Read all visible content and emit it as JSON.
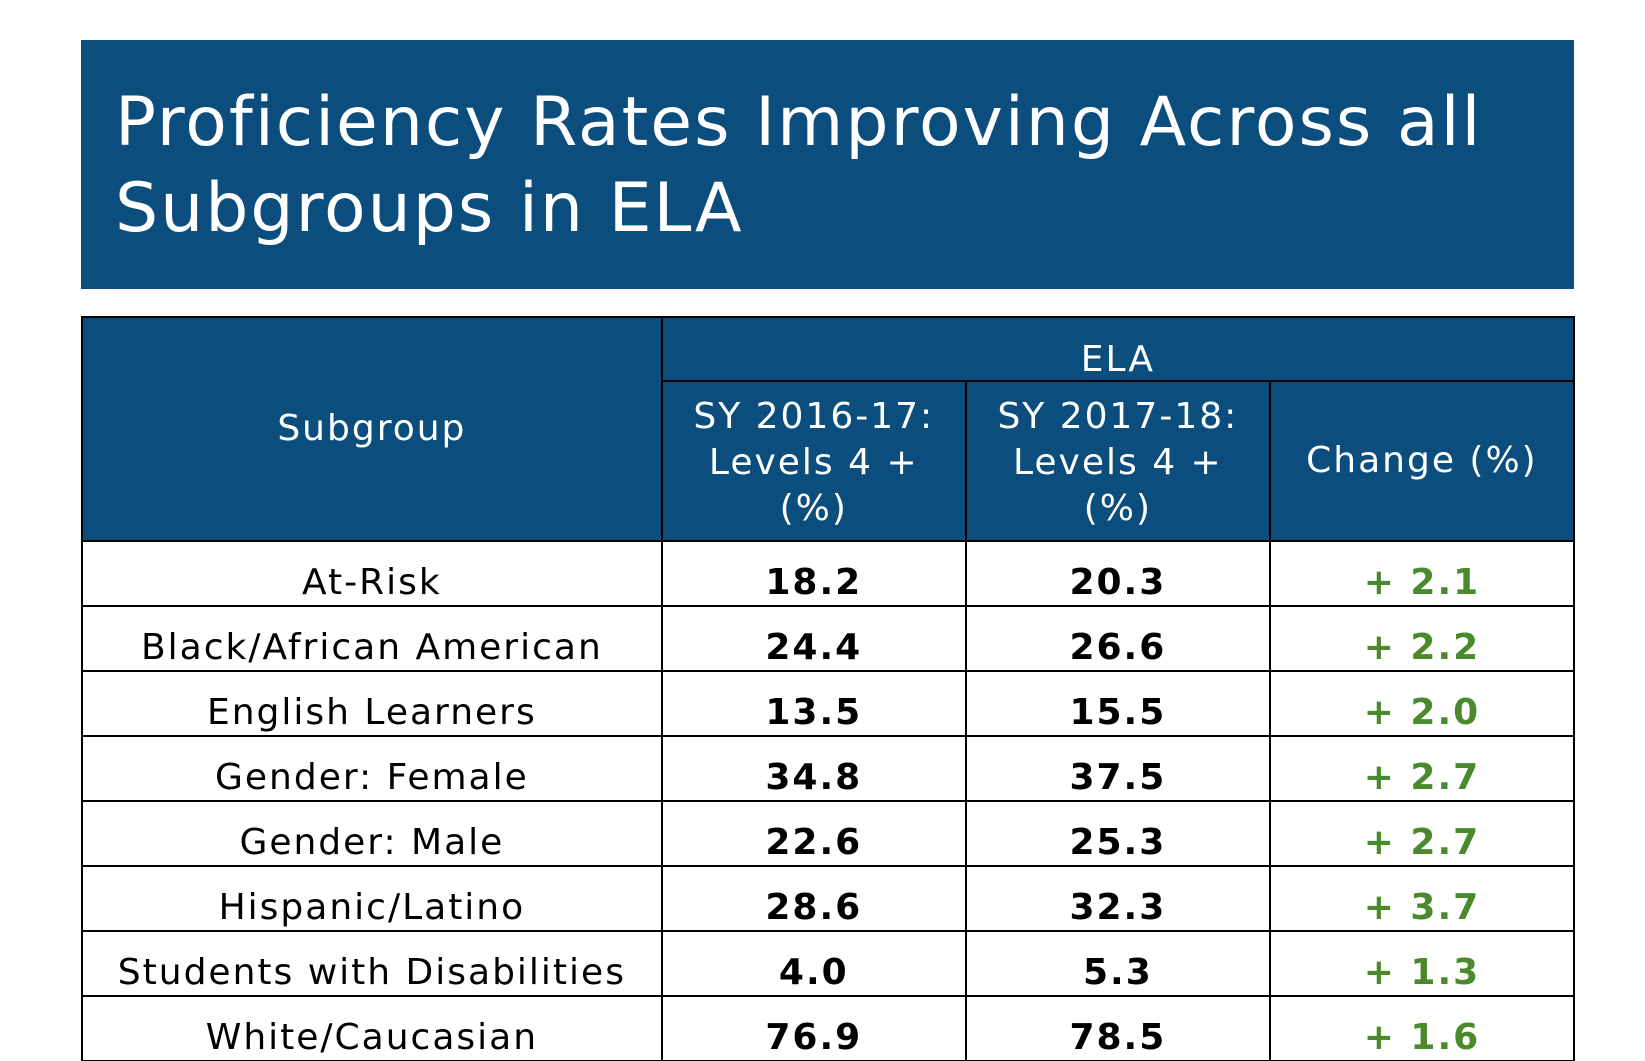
{
  "slide": {
    "title_line1": "Proficiency Rates Improving Across all",
    "title_line2": "Subgroups in ELA"
  },
  "colors": {
    "header_bg": "#0b4d7c",
    "change_text": "#4a8a2c",
    "border": "#000000"
  },
  "table": {
    "subgroup_header": "Subgroup",
    "group_header": "ELA",
    "col_2016_line1": "SY 2016-17:",
    "col_2016_line2": "Levels 4 +",
    "col_2016_line3": "(%)",
    "col_2017_line1": "SY 2017-18:",
    "col_2017_line2": "Levels 4 +",
    "col_2017_line3": "(%)",
    "change_header": "Change (%)",
    "rows": [
      {
        "subgroup": "At-Risk",
        "sy2016_17": "18.2",
        "sy2017_18": "20.3",
        "change": "+ 2.1"
      },
      {
        "subgroup": "Black/African American",
        "sy2016_17": "24.4",
        "sy2017_18": "26.6",
        "change": "+ 2.2"
      },
      {
        "subgroup": "English Learners",
        "sy2016_17": "13.5",
        "sy2017_18": "15.5",
        "change": "+ 2.0"
      },
      {
        "subgroup": "Gender: Female",
        "sy2016_17": "34.8",
        "sy2017_18": "37.5",
        "change": "+ 2.7"
      },
      {
        "subgroup": "Gender: Male",
        "sy2016_17": "22.6",
        "sy2017_18": "25.3",
        "change": "+ 2.7"
      },
      {
        "subgroup": "Hispanic/Latino",
        "sy2016_17": "28.6",
        "sy2017_18": "32.3",
        "change": "+ 3.7"
      },
      {
        "subgroup": "Students with Disabilities",
        "sy2016_17": "4.0",
        "sy2017_18": "5.3",
        "change": "+ 1.3"
      },
      {
        "subgroup": "White/Caucasian",
        "sy2016_17": "76.9",
        "sy2017_18": "78.5",
        "change": "+ 1.6"
      }
    ]
  }
}
